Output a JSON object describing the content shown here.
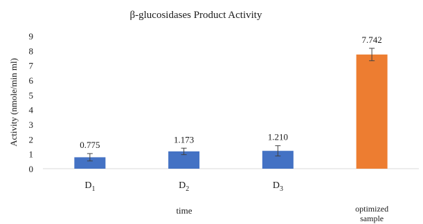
{
  "chart_data": {
    "type": "bar",
    "title": "β-glucosidases Product Activity",
    "ylabel": "Activity (nmole/min  ml)",
    "xlabel": "time",
    "ylim": [
      0,
      9
    ],
    "yticks": [
      0,
      1,
      2,
      3,
      4,
      5,
      6,
      7,
      8,
      9
    ],
    "grid": false,
    "categories": [
      {
        "main": "D",
        "sub": "1"
      },
      {
        "main": "D",
        "sub": "2"
      },
      {
        "main": "D",
        "sub": "3"
      },
      {
        "main": "optimized sample",
        "sub": ""
      }
    ],
    "values": [
      0.775,
      1.173,
      1.21,
      7.742
    ],
    "value_labels": [
      "0.775",
      "1.173",
      "1.210",
      "7.742"
    ],
    "errors": [
      0.25,
      0.22,
      0.35,
      0.42
    ],
    "colors": [
      "#4472C4",
      "#4472C4",
      "#4472C4",
      "#ED7D31"
    ]
  }
}
